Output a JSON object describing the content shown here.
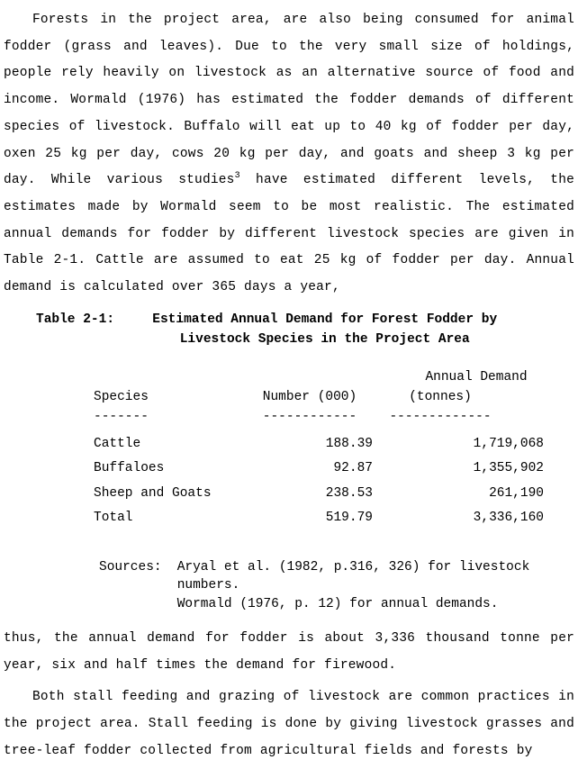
{
  "para1": "Forests in the project area, are also being consumed for animal fodder (grass and leaves).  Due to the very small size of holdings, people rely heavily on livestock as an alternative source of food and income.  Wormald (1976) has estimated the fodder demands of different species of livestock. Buffalo will eat up to 40 kg of fodder per day, oxen 25 kg per day, cows 20 kg per day, and goats and sheep 3 kg per day.  While various studies",
  "para1_sup": "3",
  "para1b": " have estimated different levels, the estimates made by Wormald seem to be most realistic.  The estimated annual demands for fodder by different livestock species are given in Table 2-1. Cattle are assumed to eat 25 kg of fodder per day.  Annual demand is calculated over 365 days a year,",
  "table_label": "Table 2-1:",
  "table_title": "Estimated Annual Demand for Forest Fodder by Livestock Species in the Project Area",
  "headers": {
    "species": "Species",
    "number": "Number (000)",
    "demand1": "Annual Demand",
    "demand2": "(tonnes)"
  },
  "dashes": {
    "c1": "-------",
    "c2": "------------",
    "c3": "-------------"
  },
  "rows": [
    {
      "species": "Cattle",
      "number": "188.39",
      "demand": "1,719,068"
    },
    {
      "species": "Buffaloes",
      "number": "92.87",
      "demand": "1,355,902"
    },
    {
      "species": "Sheep and Goats",
      "number": "238.53",
      "demand": "261,190"
    },
    {
      "species": "Total",
      "number": "519.79",
      "demand": "3,336,160"
    }
  ],
  "sources_label": "Sources:",
  "sources_line1": "Aryal et al. (1982, p.316, 326) for livestock numbers.",
  "sources_line2": "Wormald (1976, p. 12) for annual demands.",
  "para2": "thus, the annual demand for fodder is about 3,336 thousand tonne per year, six and half times the demand for firewood.",
  "para3": "Both stall feeding and grazing of livestock are common practices in the project area. Stall feeding is done by giving livestock grasses and tree-leaf fodder collected from agricultural fields and forests by"
}
